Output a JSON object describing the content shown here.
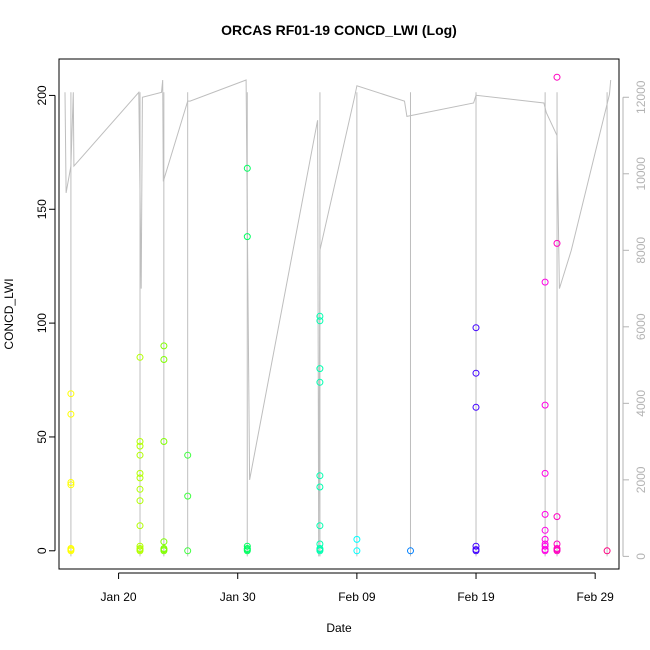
{
  "chart_data": {
    "type": "scatter",
    "title": "ORCAS RF01-19 CONCD_LWI (Log)",
    "xlabel": "Date",
    "ylabel": "CONCD_LWI",
    "xlim": [
      "2016-01-15",
      "2016-03-02"
    ],
    "ylim": [
      -8,
      216
    ],
    "y_ticks": [
      0,
      50,
      100,
      150,
      200
    ],
    "y2_ticks": [
      0,
      2000,
      4000,
      6000,
      8000,
      10000,
      12000
    ],
    "y2lim": [
      -330,
      13000
    ],
    "x_ticks": [
      {
        "date": "2016-01-20",
        "label": "Jan 20"
      },
      {
        "date": "2016-01-30",
        "label": "Jan 30"
      },
      {
        "date": "2016-02-09",
        "label": "Feb 09"
      },
      {
        "date": "2016-02-19",
        "label": "Feb 19"
      },
      {
        "date": "2016-02-29",
        "label": "Feb 29"
      }
    ],
    "line_color": "#bebebe",
    "series": [
      {
        "date": "2016-01-16",
        "color": "#ffff00",
        "values": [
          0,
          0.5,
          1,
          29,
          30,
          60,
          69
        ]
      },
      {
        "date": "2016-01-21.8",
        "color": "#b2ff00",
        "values": [
          0,
          0.5,
          1,
          2,
          11,
          22,
          27,
          32,
          34,
          42,
          46,
          48,
          85
        ]
      },
      {
        "date": "2016-01-23.8",
        "color": "#80ff00",
        "values": [
          0,
          0.5,
          1,
          4,
          48,
          84,
          90
        ]
      },
      {
        "date": "2016-01-25.8",
        "color": "#40ff40",
        "values": [
          0,
          24,
          42
        ]
      },
      {
        "date": "2016-01-30.8",
        "color": "#00ff60",
        "values": [
          0,
          0.5,
          1,
          2,
          138,
          168
        ]
      },
      {
        "date": "2016-02-05.9",
        "color": "#00ffb0",
        "values": [
          0,
          0.5,
          1,
          3,
          11,
          28,
          33,
          74,
          80,
          101,
          103
        ]
      },
      {
        "date": "2016-02-09",
        "color": "#00ffff",
        "values": [
          0,
          5
        ]
      },
      {
        "date": "2016-02-13.5",
        "color": "#0080ff",
        "values": [
          0
        ]
      },
      {
        "date": "2016-02-19",
        "color": "#4000ff",
        "values": [
          0,
          0.5,
          2,
          63,
          78,
          98
        ]
      },
      {
        "date": "2016-02-24.8",
        "color": "#ff00e6",
        "values": [
          0,
          0.5,
          2,
          3,
          5,
          9,
          16,
          34,
          64,
          118
        ]
      },
      {
        "date": "2016-02-25.8",
        "color": "#ff00c0",
        "values": [
          0,
          0.5,
          1,
          3,
          15,
          135,
          208
        ]
      },
      {
        "date": "2016-03-01",
        "color": "#ff0080",
        "values": [
          0
        ]
      }
    ],
    "right_axis_line": [
      {
        "date": "2016-01-15.5",
        "value": 12130
      },
      {
        "date": "2016-01-15.6",
        "value": 9500
      },
      {
        "date": "2016-01-16.0",
        "value": 10200
      },
      {
        "date": "2016-01-16.2",
        "value": 12130
      },
      {
        "date": "2016-01-16.25",
        "value": 10200
      },
      {
        "date": "2016-01-21.7",
        "value": 12130
      },
      {
        "date": "2016-01-21.9",
        "value": 7000
      },
      {
        "date": "2016-01-22.0",
        "value": 12000
      },
      {
        "date": "2016-01-23.6",
        "value": 12130
      },
      {
        "date": "2016-01-23.7",
        "value": 12450
      },
      {
        "date": "2016-01-23.75",
        "value": 9800
      },
      {
        "date": "2016-01-25.8",
        "value": 11900
      },
      {
        "date": "2016-01-26.0",
        "value": 11900
      },
      {
        "date": "2016-01-30.7",
        "value": 12450
      },
      {
        "date": "2016-01-31.0",
        "value": 2000
      },
      {
        "date": "2016-02-05.7",
        "value": 11400
      },
      {
        "date": "2016-02-05.8",
        "value": 0
      },
      {
        "date": "2016-02-05.9",
        "value": 8000
      },
      {
        "date": "2016-02-08.8",
        "value": 12000
      },
      {
        "date": "2016-02-09.0",
        "value": 12300
      },
      {
        "date": "2016-02-13.0",
        "value": 11900
      },
      {
        "date": "2016-02-13.2",
        "value": 11500
      },
      {
        "date": "2016-02-18.8",
        "value": 11850
      },
      {
        "date": "2016-02-19.0",
        "value": 12050
      },
      {
        "date": "2016-02-24.7",
        "value": 11850
      },
      {
        "date": "2016-02-24.9",
        "value": 11600
      },
      {
        "date": "2016-02-25.8",
        "value": 11000
      },
      {
        "date": "2016-02-26.0",
        "value": 7000
      },
      {
        "date": "2016-02-27.0",
        "value": 8000
      },
      {
        "date": "2016-03-01.2",
        "value": 12080
      },
      {
        "date": "2016-03-01.3",
        "value": 12450
      }
    ]
  }
}
